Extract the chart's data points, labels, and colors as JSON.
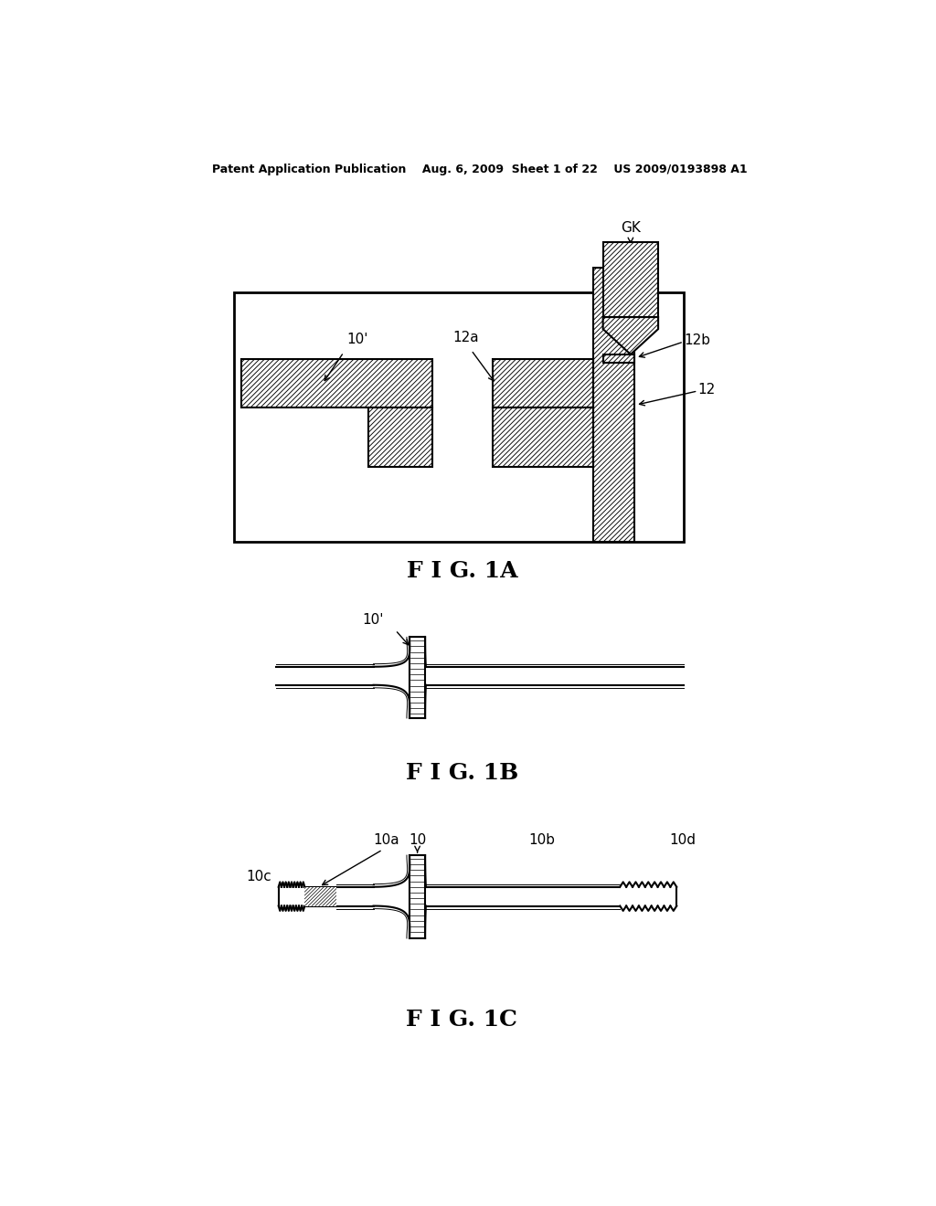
{
  "bg_color": "#ffffff",
  "line_color": "#000000",
  "header_text": "Patent Application Publication    Aug. 6, 2009  Sheet 1 of 22    US 2009/0193898 A1",
  "fig1a_label": "F I G. 1A",
  "fig1b_label": "F I G. 1B",
  "fig1c_label": "F I G. 1C",
  "label_GK": "GK",
  "label_12b": "12b",
  "label_12": "12",
  "label_10prime_1a": "10'",
  "label_12a": "12a",
  "label_10prime_1b": "10'",
  "label_10": "10",
  "label_10a": "10a",
  "label_10b": "10b",
  "label_10c": "10c",
  "label_10d": "10d"
}
